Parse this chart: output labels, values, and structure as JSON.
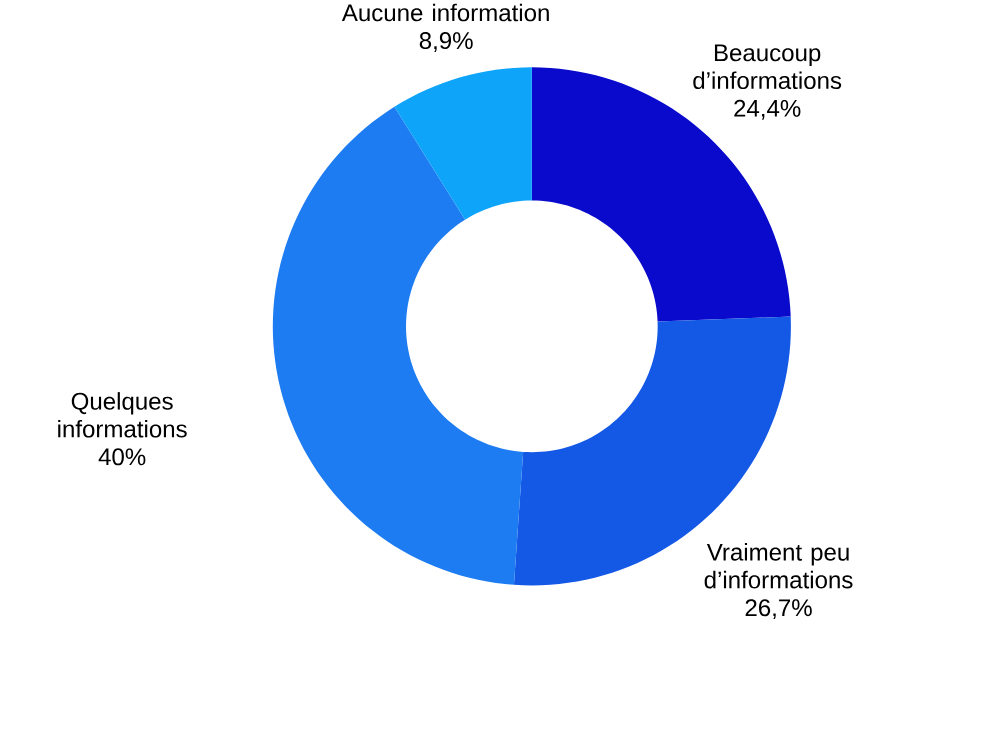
{
  "chart_data": {
    "type": "donut",
    "categories": [
      "Beaucoup d’informations",
      "Vraiment peu d’informations",
      "Quelques informations",
      "Aucune information"
    ],
    "values": [
      24.4,
      26.7,
      40,
      8.9
    ],
    "value_labels": [
      "24,4%",
      "26,7%",
      "40%",
      "8,9%"
    ],
    "colors": [
      "#0a0acc",
      "#1458e6",
      "#1e7cf2",
      "#0ea4fa"
    ]
  }
}
